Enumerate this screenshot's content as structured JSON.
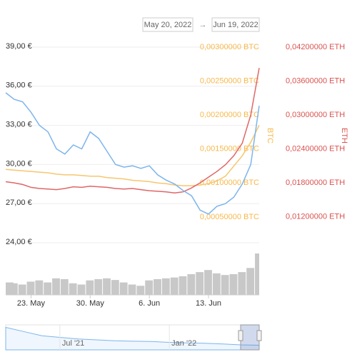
{
  "chart_data": {
    "type": "line",
    "range_from": "May 20, 2022",
    "range_separator": "→",
    "range_to": "Jun 19, 2022",
    "x": [
      "2022-05-20",
      "2022-05-21",
      "2022-05-22",
      "2022-05-23",
      "2022-05-24",
      "2022-05-25",
      "2022-05-26",
      "2022-05-27",
      "2022-05-28",
      "2022-05-29",
      "2022-05-30",
      "2022-05-31",
      "2022-06-01",
      "2022-06-02",
      "2022-06-03",
      "2022-06-04",
      "2022-06-05",
      "2022-06-06",
      "2022-06-07",
      "2022-06-08",
      "2022-06-09",
      "2022-06-10",
      "2022-06-11",
      "2022-06-12",
      "2022-06-13",
      "2022-06-14",
      "2022-06-15",
      "2022-06-16",
      "2022-06-17",
      "2022-06-18",
      "2022-06-19"
    ],
    "xlim": [
      "2022-05-20",
      "2022-06-19"
    ],
    "xticks": [
      {
        "value": "2022-05-23",
        "label": "23. May"
      },
      {
        "value": "2022-05-30",
        "label": "30. May"
      },
      {
        "value": "2022-06-06",
        "label": "6. Jun"
      },
      {
        "value": "2022-06-13",
        "label": "13. Jun"
      }
    ],
    "ylim": [
      24,
      39
    ],
    "yticks": [
      {
        "value": 24,
        "label": "24,00 €"
      },
      {
        "value": 27,
        "label": "27,00 €"
      },
      {
        "value": 30,
        "label": "30,00 €"
      },
      {
        "value": 33,
        "label": "33,00 €"
      },
      {
        "value": 36,
        "label": "36,00 €"
      },
      {
        "value": 39,
        "label": "39,00 €"
      }
    ],
    "y2_title": "BTC",
    "y2lim": [
      0.00012,
      0.003
    ],
    "y2ticks": [
      {
        "value": 0.0005,
        "label": "0,00050000 BTC"
      },
      {
        "value": 0.001,
        "label": "0,00100000 BTC"
      },
      {
        "value": 0.0015,
        "label": "0,00150000 BTC"
      },
      {
        "value": 0.002,
        "label": "0,00200000 BTC"
      },
      {
        "value": 0.0025,
        "label": "0,00250000 BTC"
      },
      {
        "value": 0.003,
        "label": "0,00300000 BTC"
      }
    ],
    "y3_title": "ETH",
    "y3lim": [
      0.0074,
      0.042
    ],
    "y3ticks": [
      {
        "value": 0.012,
        "label": "0,01200000 ETH"
      },
      {
        "value": 0.018,
        "label": "0,01800000 ETH"
      },
      {
        "value": 0.024,
        "label": "0,02400000 ETH"
      },
      {
        "value": 0.03,
        "label": "0,03000000 ETH"
      },
      {
        "value": 0.036,
        "label": "0,03600000 ETH"
      },
      {
        "value": 0.042,
        "label": "0,04200000 ETH"
      }
    ],
    "grid": true,
    "series": [
      {
        "color": "#7cb5ec",
        "axis": "y",
        "values": [
          35.5,
          35.0,
          34.8,
          34.0,
          33.0,
          32.5,
          31.2,
          30.8,
          31.5,
          31.2,
          32.5,
          32.0,
          31.0,
          30.0,
          29.8,
          29.9,
          29.7,
          29.9,
          29.2,
          28.8,
          28.5,
          28.0,
          27.6,
          26.5,
          26.2,
          26.8,
          27.0,
          27.5,
          28.5,
          30.0,
          34.5
        ]
      },
      {
        "color": "#f7c66e",
        "axis": "y2",
        "values": [
          0.0012,
          0.00119,
          0.00118,
          0.00117,
          0.00116,
          0.00115,
          0.00113,
          0.00112,
          0.00112,
          0.00111,
          0.0011,
          0.0011,
          0.00108,
          0.00107,
          0.00106,
          0.00104,
          0.00103,
          0.00102,
          0.001,
          0.00099,
          0.00097,
          0.00096,
          0.00096,
          0.00097,
          0.00099,
          0.00103,
          0.0011,
          0.00125,
          0.0014,
          0.0016,
          0.00185
        ]
      },
      {
        "color": "#e06666",
        "axis": "y3",
        "values": [
          0.0182,
          0.018,
          0.0177,
          0.0172,
          0.017,
          0.0169,
          0.0168,
          0.017,
          0.0173,
          0.0172,
          0.0174,
          0.0173,
          0.0172,
          0.017,
          0.0169,
          0.017,
          0.0168,
          0.0166,
          0.0165,
          0.0164,
          0.0162,
          0.0164,
          0.0171,
          0.018,
          0.019,
          0.02,
          0.0212,
          0.0228,
          0.025,
          0.03,
          0.0383
        ]
      }
    ],
    "volume": {
      "color": "#c8c8c8",
      "ylim": [
        0,
        100
      ],
      "values": [
        30,
        28,
        25,
        32,
        35,
        30,
        40,
        38,
        28,
        25,
        35,
        38,
        40,
        36,
        30,
        25,
        22,
        35,
        38,
        40,
        42,
        45,
        50,
        55,
        60,
        52,
        48,
        50,
        55,
        65,
        100
      ]
    },
    "navigator": {
      "color": "#7cb5ec",
      "xlim": [
        "2021-04",
        "2022-06"
      ],
      "ylim": [
        0,
        150
      ],
      "x": [
        "2021-04",
        "2021-05",
        "2021-06",
        "2021-07",
        "2021-08",
        "2021-09",
        "2021-10",
        "2021-11",
        "2021-12",
        "2022-01",
        "2022-02",
        "2022-03",
        "2022-04",
        "2022-05",
        "2022-06"
      ],
      "values": [
        135,
        110,
        85,
        75,
        65,
        60,
        55,
        52,
        50,
        45,
        42,
        40,
        35,
        30,
        28
      ],
      "xticks": [
        {
          "value": "2021-07",
          "label": "Jul '21"
        },
        {
          "value": "2022-01",
          "label": "Jan '22"
        }
      ]
    }
  }
}
